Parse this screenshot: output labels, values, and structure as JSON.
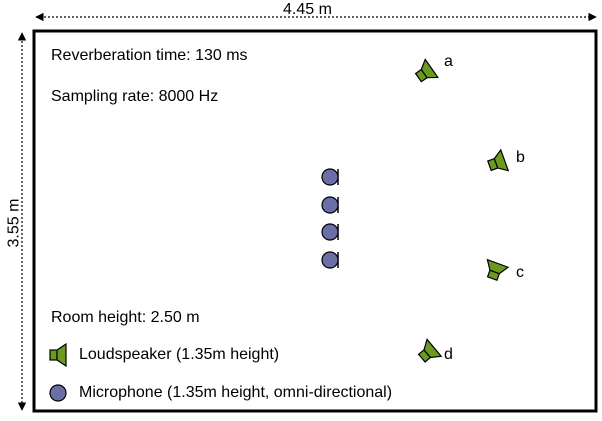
{
  "dimensions": {
    "width_label": "4.45 m",
    "depth_label": "3.55 m"
  },
  "parameters": {
    "reverberation": "Reverberation time: 130 ms",
    "sampling": "Sampling rate: 8000 Hz",
    "room_height": "Room height: 2.50 m"
  },
  "legend": {
    "loudspeaker": "Loudspeaker (1.35m height)",
    "microphone": "Microphone (1.35m height, omni-directional)"
  },
  "loudspeakers": [
    {
      "id": "a",
      "label": "a"
    },
    {
      "id": "b",
      "label": "b"
    },
    {
      "id": "c",
      "label": "c"
    },
    {
      "id": "d",
      "label": "d"
    }
  ],
  "microphone_count": 4,
  "colors": {
    "loudspeaker_fill": "#6a9a1f",
    "microphone_fill": "#6b6fa8",
    "outline": "#000000"
  }
}
